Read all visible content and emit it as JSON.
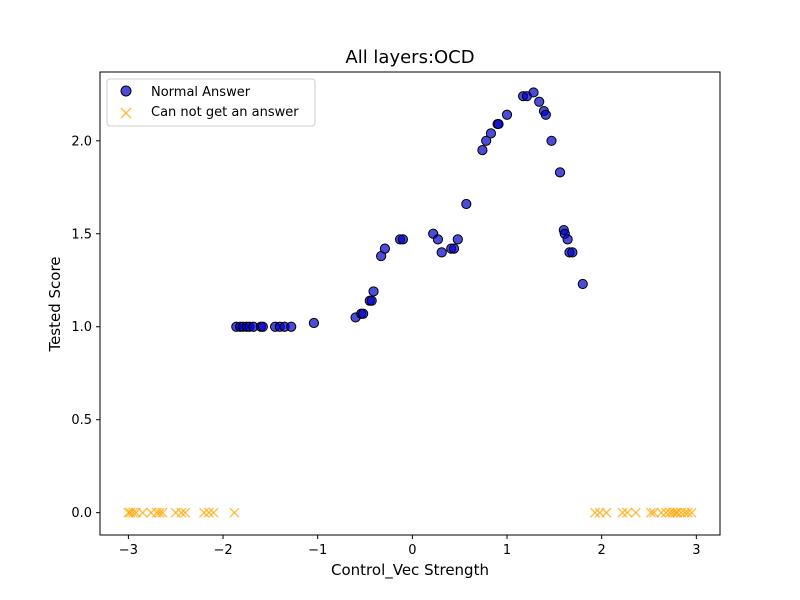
{
  "chart_data": {
    "type": "scatter",
    "title": "All layers:OCD",
    "xlabel": "Control_Vec Strength",
    "ylabel": "Tested Score",
    "xlim": [
      -3.3,
      3.25
    ],
    "ylim": [
      -0.12,
      2.37
    ],
    "xticks": [
      -3,
      -2,
      -1,
      0,
      1,
      2,
      3
    ],
    "yticks": [
      0.0,
      0.5,
      1.0,
      1.5,
      2.0
    ],
    "xtick_labels": [
      "−3",
      "−2",
      "−1",
      "0",
      "1",
      "2",
      "3"
    ],
    "ytick_labels": [
      "0.0",
      "0.5",
      "1.0",
      "1.5",
      "2.0"
    ],
    "grid": false,
    "legend_position": "top-left",
    "series": [
      {
        "name": "Normal Answer",
        "marker": "circle",
        "color": "#0000cc",
        "edge_color": "#000000",
        "points": [
          [
            -1.86,
            1.0
          ],
          [
            -1.82,
            1.0
          ],
          [
            -1.79,
            1.0
          ],
          [
            -1.75,
            1.0
          ],
          [
            -1.72,
            1.0
          ],
          [
            -1.68,
            1.0
          ],
          [
            -1.6,
            1.0
          ],
          [
            -1.58,
            1.0
          ],
          [
            -1.45,
            1.0
          ],
          [
            -1.4,
            1.0
          ],
          [
            -1.35,
            1.0
          ],
          [
            -1.28,
            1.0
          ],
          [
            -1.04,
            1.02
          ],
          [
            -0.6,
            1.05
          ],
          [
            -0.54,
            1.07
          ],
          [
            -0.52,
            1.07
          ],
          [
            -0.45,
            1.14
          ],
          [
            -0.43,
            1.14
          ],
          [
            -0.41,
            1.19
          ],
          [
            -0.33,
            1.38
          ],
          [
            -0.29,
            1.42
          ],
          [
            -0.13,
            1.47
          ],
          [
            -0.1,
            1.47
          ],
          [
            0.22,
            1.5
          ],
          [
            0.27,
            1.47
          ],
          [
            0.31,
            1.4
          ],
          [
            0.41,
            1.42
          ],
          [
            0.44,
            1.42
          ],
          [
            0.48,
            1.47
          ],
          [
            0.57,
            1.66
          ],
          [
            0.74,
            1.95
          ],
          [
            0.78,
            2.0
          ],
          [
            0.83,
            2.04
          ],
          [
            0.9,
            2.09
          ],
          [
            0.91,
            2.09
          ],
          [
            1.0,
            2.14
          ],
          [
            1.17,
            2.24
          ],
          [
            1.21,
            2.24
          ],
          [
            1.28,
            2.26
          ],
          [
            1.34,
            2.21
          ],
          [
            1.39,
            2.16
          ],
          [
            1.41,
            2.14
          ],
          [
            1.47,
            2.0
          ],
          [
            1.56,
            1.83
          ],
          [
            1.6,
            1.52
          ],
          [
            1.61,
            1.5
          ],
          [
            1.64,
            1.47
          ],
          [
            1.66,
            1.4
          ],
          [
            1.69,
            1.4
          ],
          [
            1.8,
            1.23
          ]
        ]
      },
      {
        "name": "Can not get an answer",
        "marker": "x",
        "color": "#ffa500",
        "points": [
          [
            -3.0,
            0.0
          ],
          [
            -2.98,
            0.0
          ],
          [
            -2.95,
            0.0
          ],
          [
            -2.92,
            0.0
          ],
          [
            -2.85,
            0.0
          ],
          [
            -2.76,
            0.0
          ],
          [
            -2.7,
            0.0
          ],
          [
            -2.67,
            0.0
          ],
          [
            -2.64,
            0.0
          ],
          [
            -2.5,
            0.0
          ],
          [
            -2.44,
            0.0
          ],
          [
            -2.4,
            0.0
          ],
          [
            -2.2,
            0.0
          ],
          [
            -2.15,
            0.0
          ],
          [
            -2.1,
            0.0
          ],
          [
            -1.88,
            0.0
          ],
          [
            1.93,
            0.0
          ],
          [
            1.98,
            0.0
          ],
          [
            2.05,
            0.0
          ],
          [
            2.22,
            0.0
          ],
          [
            2.27,
            0.0
          ],
          [
            2.36,
            0.0
          ],
          [
            2.52,
            0.0
          ],
          [
            2.55,
            0.0
          ],
          [
            2.63,
            0.0
          ],
          [
            2.68,
            0.0
          ],
          [
            2.72,
            0.0
          ],
          [
            2.75,
            0.0
          ],
          [
            2.78,
            0.0
          ],
          [
            2.8,
            0.0
          ],
          [
            2.84,
            0.0
          ],
          [
            2.88,
            0.0
          ],
          [
            2.91,
            0.0
          ],
          [
            2.95,
            0.0
          ]
        ]
      }
    ]
  }
}
